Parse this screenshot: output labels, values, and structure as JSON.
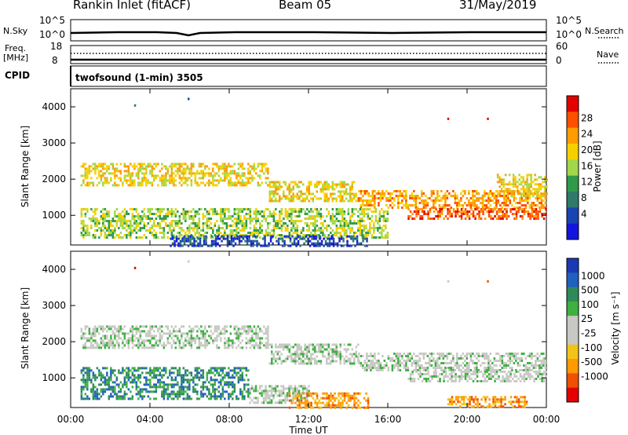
{
  "header": {
    "title": "Rankin Inlet (fitACF)",
    "beam": "Beam 05",
    "date": "31/May/2019"
  },
  "strip": {
    "nsky_label": "N.Sky",
    "nsky_ticks": [
      "10^5",
      "10^0"
    ],
    "nsearch_label": "N.Search",
    "nsearch_ticks": [
      "10^5",
      "10^0"
    ],
    "freq_label": "Freq.",
    "freq_unit": "[MHz]",
    "freq_ticks": [
      "18",
      "8"
    ],
    "nave_label": "Nave",
    "nave_ticks": [
      "60",
      "0"
    ],
    "cpid_label": "CPID",
    "cpid_text": "twofsound (1-min) 3505"
  },
  "chart_data": [
    {
      "type": "heatmap",
      "name": "power",
      "ylabel": "Slant Range [km]",
      "ylim": [
        180,
        4500
      ],
      "yticks": [
        1000,
        2000,
        3000,
        4000
      ],
      "xlim": [
        0,
        24
      ],
      "colorbar": {
        "label": "Power [dB]",
        "ticks": [
          "28",
          "24",
          "20",
          "16",
          "12",
          "8",
          "4"
        ],
        "colors": [
          "#e40000",
          "#ff5000",
          "#ff9c00",
          "#f5d000",
          "#a0d84a",
          "#2f9a4a",
          "#2f7a6a",
          "#1a44b4",
          "#1414e0"
        ]
      },
      "bands": [
        {
          "t0": 0.5,
          "t1": 10.0,
          "r0": 1850,
          "r1": 2450,
          "level": 3
        },
        {
          "t0": 10.0,
          "t1": 14.5,
          "r0": 1400,
          "r1": 1950,
          "level": 3
        },
        {
          "t0": 14.5,
          "t1": 24.0,
          "r0": 1200,
          "r1": 1700,
          "level": 2
        },
        {
          "t0": 17.0,
          "t1": 24.0,
          "r0": 900,
          "r1": 1200,
          "level": 1
        },
        {
          "t0": 0.5,
          "t1": 16.0,
          "r0": 400,
          "r1": 1200,
          "level": 4
        },
        {
          "t0": 5.0,
          "t1": 15.0,
          "r0": 180,
          "r1": 450,
          "level": 7
        },
        {
          "t0": 21.5,
          "t1": 24.0,
          "r0": 1550,
          "r1": 2150,
          "level": 3
        }
      ],
      "points": [
        {
          "t": 3.2,
          "r": 4070,
          "level": 6
        },
        {
          "t": 5.9,
          "r": 4250,
          "level": 7
        },
        {
          "t": 19.0,
          "r": 3700,
          "level": 0
        },
        {
          "t": 21.0,
          "r": 3700,
          "level": 0
        }
      ]
    },
    {
      "type": "heatmap",
      "name": "velocity",
      "ylabel": "Slant Range [km]",
      "ylim": [
        180,
        4500
      ],
      "yticks": [
        1000,
        2000,
        3000,
        4000
      ],
      "xlim": [
        0,
        24
      ],
      "xticks": [
        "00:00",
        "04:00",
        "08:00",
        "12:00",
        "16:00",
        "20:00",
        "00:00"
      ],
      "xlabel": "Time UT",
      "colorbar": {
        "label": "Velocity [m s⁻¹]",
        "ticks": [
          "1000",
          "500",
          "100",
          "25",
          "-25",
          "-100",
          "-500",
          "-1000"
        ],
        "colors": [
          "#1a3ab4",
          "#2060c0",
          "#2f8a5a",
          "#3fb040",
          "#c8c8c4",
          "#c8c8c4",
          "#f2c418",
          "#ff9a00",
          "#f05000",
          "#e40000"
        ]
      },
      "bands": [
        {
          "t0": 0.5,
          "t1": 10.0,
          "r0": 1850,
          "r1": 2450,
          "level": 4
        },
        {
          "t0": 10.0,
          "t1": 14.5,
          "r0": 1400,
          "r1": 1950,
          "level": 4
        },
        {
          "t0": 14.5,
          "t1": 24.0,
          "r0": 1200,
          "r1": 1700,
          "level": 4
        },
        {
          "t0": 17.0,
          "t1": 24.0,
          "r0": 900,
          "r1": 1200,
          "level": 4
        },
        {
          "t0": 0.5,
          "t1": 9.0,
          "r0": 400,
          "r1": 1300,
          "level": 2
        },
        {
          "t0": 9.0,
          "t1": 12.0,
          "r0": 300,
          "r1": 800,
          "level": 4
        },
        {
          "t0": 11.0,
          "t1": 15.0,
          "r0": 180,
          "r1": 600,
          "level": 7
        },
        {
          "t0": 19.0,
          "t1": 23.0,
          "r0": 180,
          "r1": 500,
          "level": 7
        }
      ],
      "points": [
        {
          "t": 3.2,
          "r": 4070,
          "level": 9
        },
        {
          "t": 5.9,
          "r": 4250,
          "level": 4
        },
        {
          "t": 19.0,
          "r": 3700,
          "level": 4
        },
        {
          "t": 21.0,
          "r": 3700,
          "level": 8
        }
      ]
    }
  ]
}
